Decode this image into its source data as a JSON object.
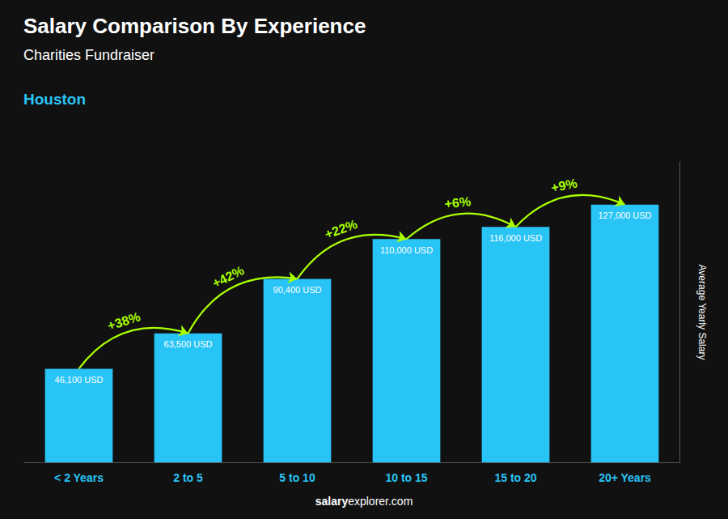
{
  "chart_data": {
    "type": "bar",
    "title": "Salary Comparison By Experience",
    "subtitle": "Charities Fundraiser",
    "city": "Houston",
    "categories": [
      "< 2 Years",
      "2 to 5",
      "5 to 10",
      "10 to 15",
      "15 to 20",
      "20+ Years"
    ],
    "values": [
      46100,
      63500,
      90400,
      110000,
      116000,
      127000
    ],
    "value_labels": [
      "46,100 USD",
      "63,500 USD",
      "90,400 USD",
      "110,000 USD",
      "116,000 USD",
      "127,000 USD"
    ],
    "data_labels": true,
    "color": "#29c4f6",
    "ylabel": "Average Yearly Salary",
    "ylim": [
      0,
      148000
    ],
    "yticks": [],
    "tick_labels": "x",
    "grid": false,
    "annotations": [
      {
        "text": "+38%",
        "from": "< 2 Years",
        "to": "2 to 5",
        "color": "#aaff00"
      },
      {
        "text": "+42%",
        "from": "2 to 5",
        "to": "5 to 10",
        "color": "#aaff00"
      },
      {
        "text": "+22%",
        "from": "5 to 10",
        "to": "10 to 15",
        "color": "#aaff00"
      },
      {
        "text": "+6%",
        "from": "10 to 15",
        "to": "15 to 20",
        "color": "#aaff00"
      },
      {
        "text": "+9%",
        "from": "15 to 20",
        "to": "20+ Years",
        "color": "#aaff00"
      }
    ],
    "footer": [
      "salary",
      "explorer.com"
    ]
  }
}
